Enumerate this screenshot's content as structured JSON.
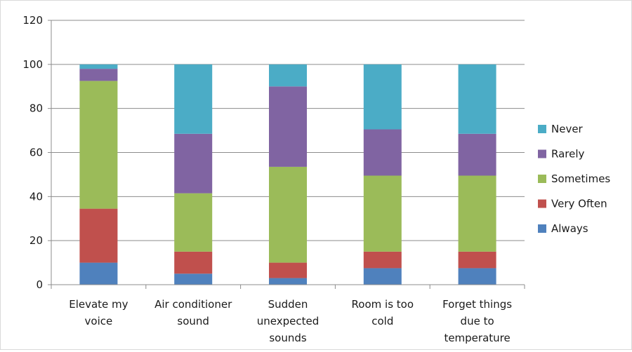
{
  "chart_data": {
    "type": "bar",
    "stacked": true,
    "categories": [
      [
        "Elevate my",
        "voice"
      ],
      [
        "Air conditioner",
        "sound"
      ],
      [
        "Sudden",
        "unexpected",
        "sounds"
      ],
      [
        "Room is too",
        "cold"
      ],
      [
        "Forget things",
        "due to",
        "temperature"
      ]
    ],
    "series": [
      {
        "name": "Always",
        "color": "#4f81bd",
        "values": [
          10,
          5,
          3,
          7.5,
          7.5
        ]
      },
      {
        "name": "Very Often",
        "color": "#c0504d",
        "values": [
          24.5,
          10,
          7,
          7.5,
          7.5
        ]
      },
      {
        "name": "Sometimes",
        "color": "#9bbb59",
        "values": [
          58,
          26.5,
          43.5,
          34.5,
          34.5
        ]
      },
      {
        "name": "Rarely",
        "color": "#8064a2",
        "values": [
          5.5,
          27,
          36.5,
          21,
          19
        ]
      },
      {
        "name": "Never",
        "color": "#4bacc6",
        "values": [
          2,
          31.5,
          10,
          29.5,
          31.5
        ]
      }
    ],
    "y_ticks": [
      "0",
      "20",
      "40",
      "60",
      "80",
      "100",
      "120"
    ],
    "ylim": [
      0,
      120
    ],
    "grid": true,
    "legend_position": "right"
  }
}
